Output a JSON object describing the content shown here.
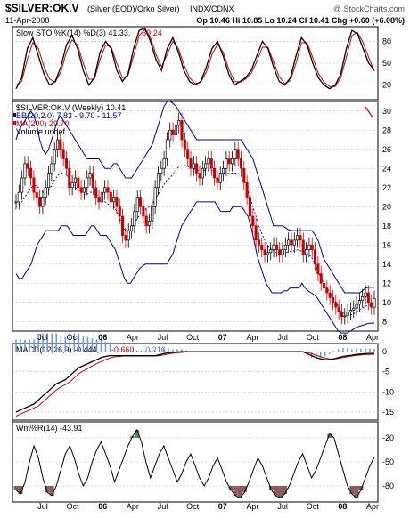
{
  "header": {
    "symbol": "$SILVER:OK.V",
    "description": "(Silver (EOD)/Orko Silver)",
    "exchange": "INDX/CDNX",
    "watermark": "@ StockCharts.com",
    "date": "11-Apr-2008",
    "quote": "Op 10.46  Hi 10.85  Lo 10.24  Cl 10.41  Chg +0.60 (+6.08%)",
    "quote_color": "#000000"
  },
  "colors": {
    "price_up": "#000000",
    "price_down": "#cc0000",
    "bollinger": "#00008b",
    "ma": "#00008b",
    "stoch_k": "#000000",
    "stoch_d": "#cc0000",
    "macd": "#000000",
    "signal": "#cc0000",
    "hist": "#6495ed",
    "wr_fill": "#8b5a5a",
    "wr_fill_top": "#5a8b5a"
  },
  "chart_data": [
    {
      "id": "slow_sto",
      "type": "line",
      "legend": [
        {
          "text": "Slow STO %K(14) %D(3) 41.33,",
          "color": "#000000"
        },
        {
          "text": "39.24",
          "color": "#cc0000"
        }
      ],
      "ylim": [
        0,
        100
      ],
      "yticks": [
        20,
        50,
        80
      ],
      "series": [
        {
          "name": "%K",
          "color": "#000000",
          "values": [
            15,
            30,
            70,
            85,
            60,
            35,
            20,
            25,
            45,
            75,
            88,
            70,
            40,
            20,
            30,
            65,
            80,
            70,
            40,
            25,
            35,
            70,
            95,
            98,
            80,
            55,
            40,
            70,
            85,
            65,
            40,
            25,
            20,
            25,
            45,
            70,
            80,
            60,
            35,
            20,
            25,
            30,
            40,
            60,
            80,
            70,
            45,
            25,
            20,
            30,
            60,
            85,
            75,
            50,
            30,
            20,
            15,
            20,
            35,
            70,
            95,
            90,
            70,
            50,
            41
          ]
        },
        {
          "name": "%D",
          "color": "#cc0000",
          "values": [
            20,
            25,
            55,
            78,
            70,
            45,
            28,
            24,
            38,
            65,
            82,
            75,
            50,
            28,
            28,
            55,
            75,
            72,
            50,
            30,
            33,
            60,
            88,
            96,
            85,
            62,
            45,
            62,
            80,
            70,
            48,
            30,
            22,
            24,
            38,
            62,
            76,
            65,
            42,
            25,
            24,
            28,
            36,
            52,
            72,
            72,
            52,
            32,
            22,
            26,
            50,
            78,
            78,
            58,
            36,
            24,
            18,
            18,
            30,
            58,
            88,
            92,
            78,
            58,
            39
          ]
        }
      ]
    },
    {
      "id": "price",
      "type": "candlestick",
      "legend": [
        {
          "text": "$SILVER:OK.V (Weekly) 10.41",
          "color": "#000000"
        },
        {
          "text": "BB(20,2.0) 7.83 - 9.70 - 11.57",
          "color": "#00008b"
        },
        {
          "text": "MA(200) 29.70",
          "color": "#cc0000"
        },
        {
          "text": "Volume undef",
          "color": "#000000"
        }
      ],
      "ylim": [
        7,
        31
      ],
      "yticks": [
        8,
        10,
        12,
        14,
        16,
        18,
        20,
        22,
        24,
        26,
        28,
        30
      ],
      "x_labels": [
        "Jul",
        "Oct",
        "06",
        "Apr",
        "Jul",
        "Oct",
        "07",
        "Apr",
        "Jul",
        "Oct",
        "08",
        "Apr"
      ],
      "close": [
        20.5,
        21.5,
        23,
        24.5,
        24,
        23,
        21.5,
        21,
        20,
        21,
        22,
        23.5,
        24.5,
        26,
        27,
        26,
        25,
        24,
        22,
        22.5,
        23,
        22,
        21.5,
        22,
        23,
        23.5,
        22,
        21,
        20.5,
        21.5,
        22,
        21.5,
        20.5,
        21,
        20,
        19,
        17,
        16.5,
        17.5,
        18,
        19.5,
        21,
        20,
        19,
        18,
        18.5,
        20,
        22,
        23.5,
        24,
        25,
        27,
        28,
        27.5,
        28.5,
        29,
        27,
        26,
        25,
        24,
        24.5,
        23.5,
        23,
        24,
        24.5,
        25,
        24,
        23,
        22.5,
        23.5,
        24,
        25,
        24.5,
        25,
        26,
        25,
        24,
        22.5,
        21,
        19,
        18,
        16.5,
        16,
        15.5,
        15,
        15.2,
        15.5,
        16,
        15.5,
        15,
        15.5,
        16,
        16.5,
        16,
        16.5,
        17,
        16.5,
        15,
        15.5,
        16,
        15.5,
        14,
        13,
        12,
        11.5,
        11,
        10.5,
        10,
        9.5,
        9,
        8.5,
        8.6,
        9,
        9.2,
        9.4,
        9.8,
        10.2,
        10.6,
        11,
        10,
        9.5,
        10.41
      ],
      "bb_upper": [
        27,
        28,
        28.5,
        29,
        29.5,
        30,
        29.5,
        28.5,
        27,
        26,
        25.5,
        26,
        27,
        28,
        29,
        29.5,
        29,
        28.5,
        28,
        27.5,
        27,
        26.5,
        26,
        25.5,
        25,
        25,
        25,
        25,
        25,
        24.5,
        24,
        24,
        24,
        24.5,
        24.5,
        24,
        23.5,
        23,
        23,
        23,
        23.5,
        24,
        24.5,
        25,
        25.5,
        26,
        26.5,
        27.5,
        28.5,
        29.5,
        30.5,
        31,
        31,
        30.8,
        30.5,
        30,
        29.5,
        29,
        28.5,
        28,
        27.5,
        27,
        27,
        27,
        27,
        27,
        27,
        27,
        27,
        27,
        27,
        27,
        27,
        27,
        27,
        27,
        27,
        26.5,
        26,
        25.5,
        25,
        24,
        23,
        22,
        21,
        20,
        19,
        18,
        18,
        18,
        18,
        17.8,
        17.6,
        17.5,
        17.5,
        17.5,
        17.5,
        17.5,
        17.5,
        17.5,
        17.5,
        17,
        16.5,
        15.5,
        14.5,
        14,
        13.5,
        13,
        12.5,
        12,
        11.5,
        11,
        11,
        11,
        11,
        11,
        11,
        11.2,
        11.5,
        11.57,
        11.57,
        11.57
      ],
      "bb_lower": [
        13,
        12.5,
        12.5,
        13,
        13.5,
        14,
        15,
        16,
        16.5,
        17,
        17.5,
        17.5,
        17.5,
        17.5,
        17.5,
        18,
        18,
        18,
        17.5,
        17,
        17,
        17,
        17,
        17,
        17.5,
        18,
        18,
        17.5,
        17,
        17,
        17,
        16.5,
        16,
        15.5,
        14.5,
        13.5,
        12.5,
        12,
        12,
        12.5,
        13,
        13.5,
        13.8,
        14,
        14,
        14,
        14,
        14,
        14,
        14,
        14,
        14.5,
        15,
        16,
        17,
        18,
        18.5,
        19,
        19.5,
        20,
        20.5,
        20.5,
        20.5,
        20.5,
        20.5,
        20.5,
        20.5,
        20,
        19.5,
        19.5,
        19.5,
        19.5,
        20,
        20,
        20,
        20,
        19.5,
        19,
        18,
        16.5,
        15,
        14,
        13,
        12,
        11.5,
        11,
        11,
        11,
        11,
        11.2,
        11.2,
        11.5,
        11.5,
        11.5,
        11.5,
        12,
        11.5,
        11.2,
        11,
        10.8,
        10.5,
        10,
        9.5,
        9,
        8.5,
        8,
        7.5,
        7,
        6.8,
        6.8,
        6.8,
        7,
        7.2,
        7.4,
        7.5,
        7.6,
        7.7,
        7.8,
        7.83,
        7.83
      ],
      "bb_mid": [
        20,
        20.2,
        20.5,
        21,
        21.5,
        22,
        22.2,
        22.2,
        21.8,
        21.5,
        21.5,
        21.8,
        22.2,
        22.8,
        23.2,
        23.5,
        23.5,
        23.3,
        23,
        22.5,
        22,
        21.8,
        21.5,
        21.3,
        21.3,
        21.5,
        21.5,
        21.3,
        21,
        20.8,
        20.5,
        20.3,
        20,
        20,
        19.5,
        18.8,
        18,
        17.5,
        17.5,
        17.8,
        18.2,
        18.8,
        19.2,
        19.5,
        19.8,
        20,
        20.2,
        20.8,
        21.3,
        21.8,
        22.3,
        22.8,
        23,
        23.4,
        23.8,
        24.2,
        24.3,
        24.3,
        24.2,
        24.1,
        24,
        23.8,
        23.8,
        23.8,
        23.8,
        23.8,
        23.8,
        23.6,
        23.4,
        23.4,
        23.4,
        23.4,
        23.5,
        23.5,
        23.5,
        23.5,
        23.2,
        22.8,
        22,
        21,
        20,
        19,
        18,
        17.2,
        16.5,
        16,
        15.6,
        15.4,
        15.2,
        15.2,
        15.2,
        15.2,
        15.3,
        15.3,
        15.4,
        15.5,
        15.4,
        15.3,
        15.2,
        15,
        14.6,
        14,
        13.2,
        12.5,
        12,
        11.5,
        11,
        10.5,
        10,
        9.5,
        9,
        8.8,
        8.7,
        8.7,
        8.8,
        9,
        9.2,
        9.4,
        9.6,
        9.7,
        9.7,
        9.7
      ]
    },
    {
      "id": "macd",
      "type": "line",
      "legend": [
        {
          "text": "MACD(12,26,9) -0.444,",
          "color": "#000000"
        },
        {
          "text": "-0.660,",
          "color": "#cc0000"
        },
        {
          "text": "0.216",
          "color": "#4682b4"
        }
      ],
      "ylim": [
        -17,
        2
      ],
      "yticks": [
        0,
        -5,
        -10,
        -15
      ],
      "series": [
        {
          "name": "MACD",
          "color": "#000000",
          "values": [
            -15,
            -14.5,
            -14,
            -13.5,
            -13,
            -12,
            -11,
            -10,
            -9,
            -8,
            -7.5,
            -7,
            -6,
            -5,
            -4,
            -3.5,
            -3,
            -2.5,
            -2,
            -1.5,
            -1.2,
            -1,
            -1,
            -1,
            -1,
            -1,
            -1,
            -1,
            -1,
            -1,
            -1,
            -1,
            -0.8,
            -0.5,
            -0.3,
            -0.2,
            -0.1,
            0,
            0,
            0,
            0,
            0,
            0,
            0,
            0,
            0,
            0,
            0,
            0,
            0,
            0,
            0,
            0,
            0,
            0,
            0,
            0,
            0,
            0,
            0,
            0,
            0,
            0,
            0,
            0,
            -0.5,
            -1,
            -1.5,
            -1.8,
            -2,
            -2,
            -1.8,
            -1.5,
            -1.2,
            -1,
            -0.9,
            -0.7,
            -0.6,
            -0.5,
            -0.45,
            -0.444
          ]
        },
        {
          "name": "Signal",
          "color": "#cc0000",
          "values": [
            -16,
            -15.5,
            -15,
            -14.5,
            -14,
            -13.5,
            -12.5,
            -11.5,
            -10.5,
            -9.5,
            -8.8,
            -8.2,
            -7.5,
            -6.5,
            -5.5,
            -4.8,
            -4.2,
            -3.6,
            -3,
            -2.5,
            -2,
            -1.6,
            -1.3,
            -1.2,
            -1.1,
            -1.1,
            -1.1,
            -1.1,
            -1.1,
            -1.1,
            -1.1,
            -1.1,
            -1,
            -0.8,
            -0.6,
            -0.4,
            -0.3,
            -0.2,
            -0.1,
            0,
            0,
            0,
            0,
            0,
            0,
            0,
            0,
            0,
            0,
            0,
            0,
            0,
            0,
            0,
            0,
            0,
            0,
            0,
            0,
            0,
            0,
            0,
            0,
            0,
            0,
            -0.2,
            -0.5,
            -0.9,
            -1.3,
            -1.6,
            -1.8,
            -1.85,
            -1.7,
            -1.5,
            -1.3,
            -1.1,
            -0.95,
            -0.85,
            -0.75,
            -0.7,
            -0.66
          ]
        }
      ]
    },
    {
      "id": "williams",
      "type": "area",
      "legend": [
        {
          "text": "Wm%R(14) -43.91",
          "color": "#000000"
        }
      ],
      "ylim": [
        -100,
        0
      ],
      "yticks": [
        -20,
        -50,
        -80
      ],
      "x_labels": [
        "Jul",
        "Oct",
        "06",
        "Apr",
        "Jul",
        "Oct",
        "07",
        "Apr",
        "Jul",
        "Oct",
        "08",
        "Apr"
      ],
      "series": [
        {
          "name": "Wm%R",
          "color": "#000000",
          "values": [
            -85,
            -90,
            -75,
            -50,
            -30,
            -45,
            -70,
            -88,
            -92,
            -80,
            -60,
            -40,
            -30,
            -45,
            -65,
            -80,
            -70,
            -50,
            -35,
            -25,
            -40,
            -55,
            -75,
            -60,
            -45,
            -30,
            -18,
            -10,
            -25,
            -50,
            -70,
            -55,
            -40,
            -30,
            -45,
            -60,
            -75,
            -65,
            -50,
            -40,
            -55,
            -70,
            -80,
            -70,
            -55,
            -45,
            -60,
            -75,
            -85,
            -92,
            -95,
            -88,
            -75,
            -60,
            -45,
            -55,
            -70,
            -85,
            -92,
            -95,
            -90,
            -80,
            -65,
            -50,
            -40,
            -55,
            -70,
            -60,
            -45,
            -30,
            -15,
            -20,
            -40,
            -60,
            -80,
            -90,
            -95,
            -85,
            -70,
            -55,
            -44
          ]
        }
      ]
    }
  ]
}
